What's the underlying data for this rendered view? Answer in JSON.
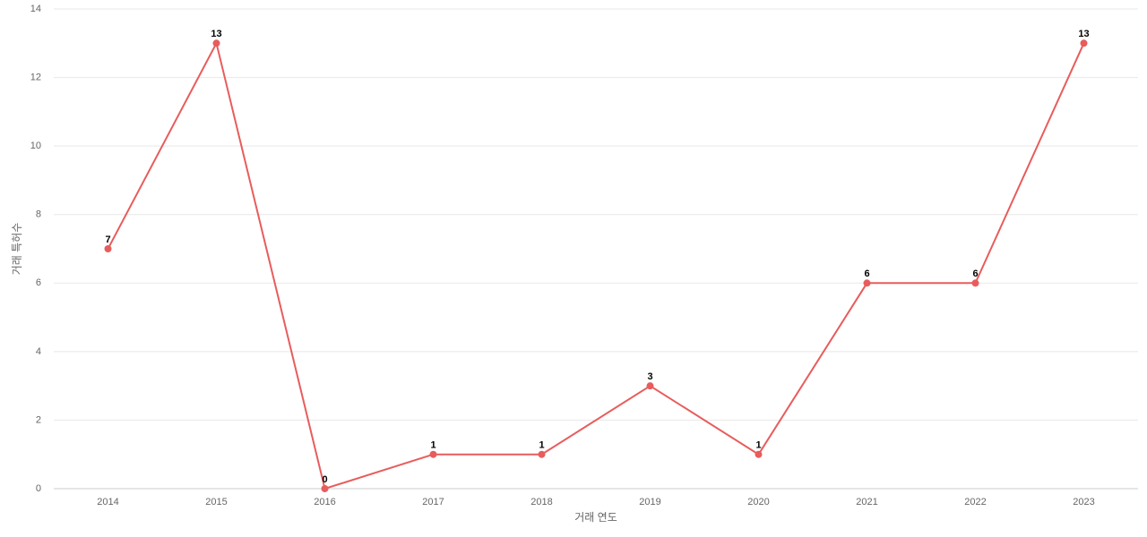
{
  "chart_data": {
    "type": "line",
    "xlabel": "거래 연도",
    "ylabel": "거래 특허수",
    "categories": [
      "2014",
      "2015",
      "2016",
      "2017",
      "2018",
      "2019",
      "2020",
      "2021",
      "2022",
      "2023"
    ],
    "series": [
      {
        "name": "거래 특허수",
        "color": "#e85c5c",
        "values": [
          7,
          13,
          0,
          1,
          1,
          3,
          1,
          6,
          6,
          13
        ]
      }
    ],
    "ylim": [
      0,
      14
    ],
    "yticks": [
      0,
      2,
      4,
      6,
      8,
      10,
      12,
      14
    ],
    "grid": true
  }
}
